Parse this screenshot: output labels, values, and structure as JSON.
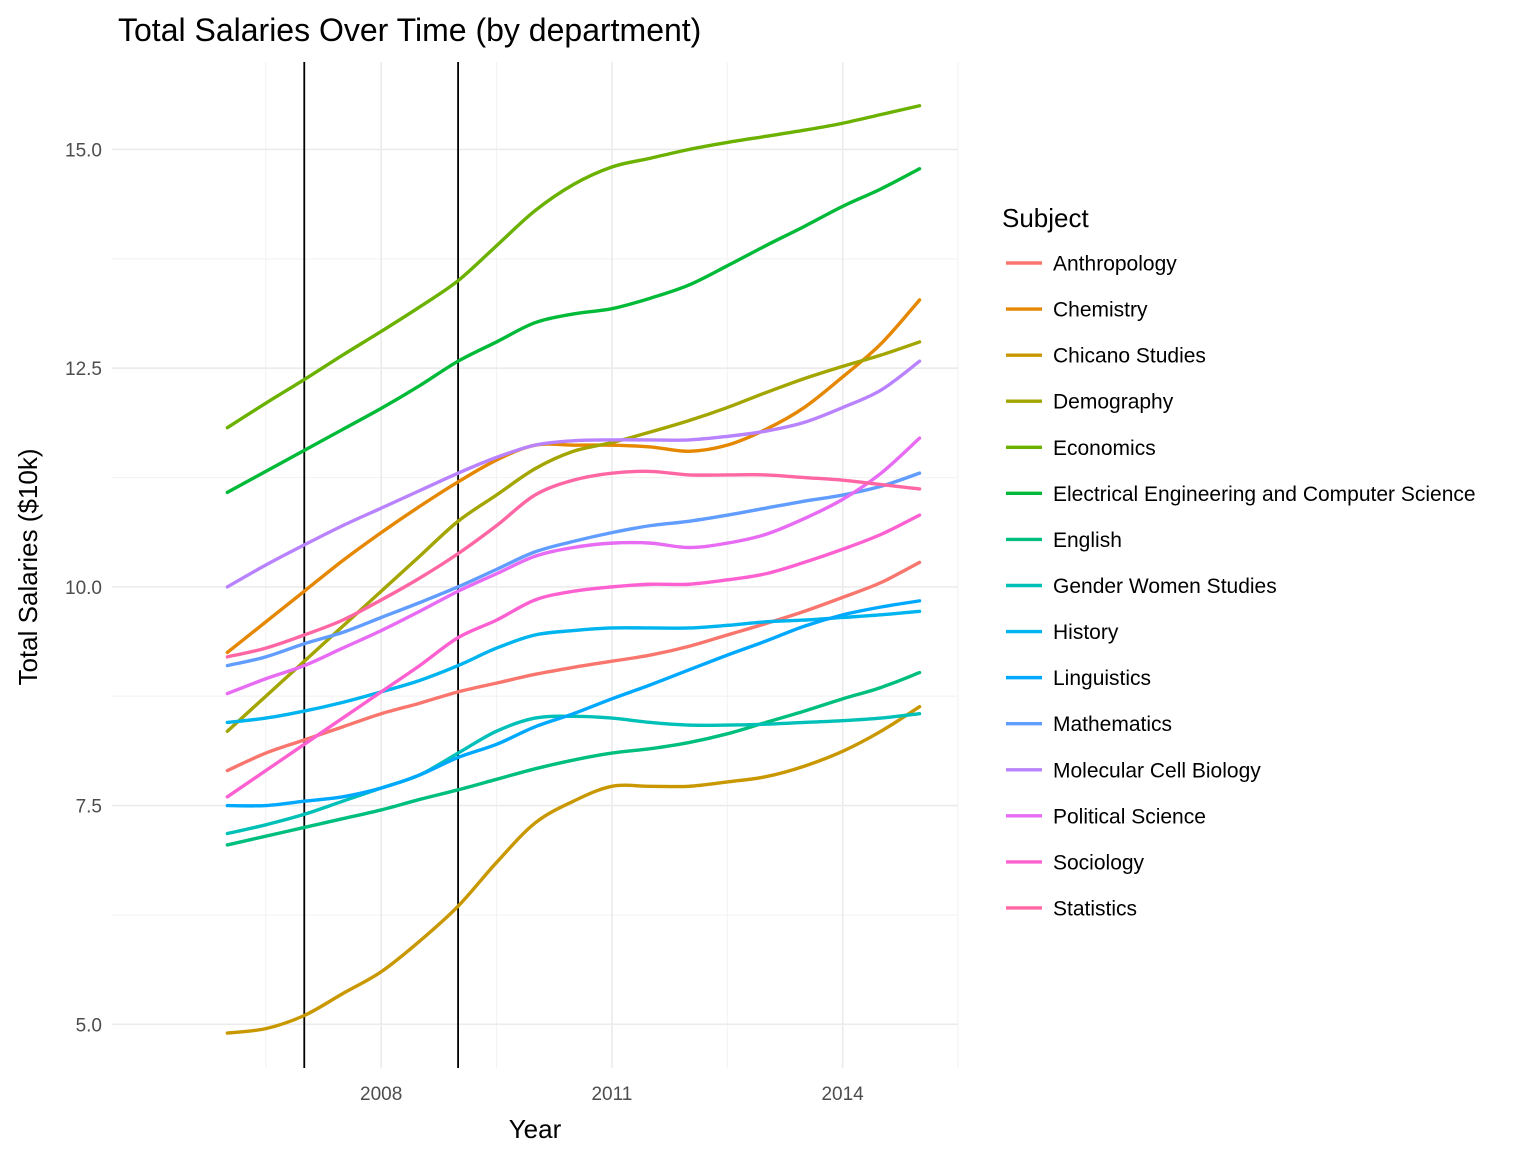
{
  "chart_data": {
    "type": "line",
    "title": "Total Salaries Over Time (by department)",
    "xlabel": "Year",
    "ylabel": "Total Salaries ($10k)",
    "xlim": [
      2004.5,
      2015.5
    ],
    "ylim": [
      4.5,
      16.0
    ],
    "x_ticks": [
      2008,
      2011,
      2014
    ],
    "x_tick_labels": [
      "2008",
      "2011",
      "2014"
    ],
    "y_ticks": [
      5.0,
      7.5,
      10.0,
      12.5,
      15.0
    ],
    "y_tick_labels": [
      "5.0",
      "7.5",
      "10.0",
      "12.5",
      "15.0"
    ],
    "grid": true,
    "legend_title": "Subject",
    "legend_position": "right",
    "vertical_lines": [
      2007,
      2009
    ],
    "x": [
      2006,
      2006.5,
      2007,
      2007.5,
      2008,
      2008.5,
      2009,
      2009.5,
      2010,
      2010.5,
      2011,
      2011.5,
      2012,
      2012.5,
      2013,
      2013.5,
      2014,
      2014.5,
      2015
    ],
    "series": [
      {
        "name": "Anthropology",
        "color": "#F8766D",
        "values": [
          7.9,
          8.1,
          8.25,
          8.4,
          8.55,
          8.67,
          8.8,
          8.9,
          9.0,
          9.08,
          9.15,
          9.22,
          9.32,
          9.45,
          9.58,
          9.72,
          9.88,
          10.05,
          10.28
        ]
      },
      {
        "name": "Chemistry",
        "color": "#E58700",
        "values": [
          9.25,
          9.6,
          9.95,
          10.3,
          10.62,
          10.92,
          11.2,
          11.45,
          11.62,
          11.62,
          11.62,
          11.6,
          11.55,
          11.62,
          11.8,
          12.05,
          12.4,
          12.78,
          13.28
        ]
      },
      {
        "name": "Chicano Studies",
        "color": "#C99800",
        "values": [
          4.9,
          4.95,
          5.1,
          5.35,
          5.6,
          5.95,
          6.35,
          6.85,
          7.3,
          7.55,
          7.72,
          7.72,
          7.72,
          7.77,
          7.83,
          7.95,
          8.12,
          8.35,
          8.63
        ]
      },
      {
        "name": "Demography",
        "color": "#A3A500",
        "values": [
          8.35,
          8.75,
          9.15,
          9.55,
          9.95,
          10.35,
          10.75,
          11.05,
          11.35,
          11.55,
          11.65,
          11.77,
          11.9,
          12.05,
          12.22,
          12.38,
          12.52,
          12.65,
          12.8
        ]
      },
      {
        "name": "Economics",
        "color": "#6BB100",
        "values": [
          11.82,
          12.1,
          12.37,
          12.65,
          12.92,
          13.2,
          13.5,
          13.9,
          14.3,
          14.6,
          14.8,
          14.9,
          15.0,
          15.08,
          15.15,
          15.22,
          15.3,
          15.4,
          15.5
        ]
      },
      {
        "name": "Electrical Engineering and Computer Science",
        "color": "#00BA38",
        "values": [
          11.08,
          11.32,
          11.56,
          11.8,
          12.04,
          12.3,
          12.58,
          12.8,
          13.02,
          13.12,
          13.18,
          13.3,
          13.45,
          13.67,
          13.9,
          14.12,
          14.35,
          14.55,
          14.78
        ]
      },
      {
        "name": "English",
        "color": "#00BF7D",
        "values": [
          7.05,
          7.15,
          7.25,
          7.35,
          7.45,
          7.57,
          7.68,
          7.8,
          7.92,
          8.02,
          8.1,
          8.15,
          8.22,
          8.32,
          8.45,
          8.58,
          8.72,
          8.85,
          9.02
        ]
      },
      {
        "name": "Gender Women Studies",
        "color": "#00C0B8",
        "values": [
          7.18,
          7.28,
          7.4,
          7.55,
          7.7,
          7.85,
          8.1,
          8.35,
          8.5,
          8.52,
          8.5,
          8.45,
          8.42,
          8.42,
          8.43,
          8.45,
          8.47,
          8.5,
          8.55
        ]
      },
      {
        "name": "History",
        "color": "#00B4EF",
        "values": [
          8.45,
          8.5,
          8.58,
          8.68,
          8.8,
          8.93,
          9.1,
          9.3,
          9.45,
          9.5,
          9.53,
          9.53,
          9.53,
          9.56,
          9.6,
          9.62,
          9.65,
          9.68,
          9.72
        ]
      },
      {
        "name": "Linguistics",
        "color": "#00A9FF",
        "values": [
          7.5,
          7.5,
          7.55,
          7.6,
          7.7,
          7.85,
          8.05,
          8.2,
          8.4,
          8.55,
          8.72,
          8.88,
          9.05,
          9.22,
          9.38,
          9.55,
          9.68,
          9.77,
          9.84
        ]
      },
      {
        "name": "Mathematics",
        "color": "#619CFF",
        "values": [
          9.1,
          9.2,
          9.35,
          9.48,
          9.65,
          9.82,
          10.0,
          10.2,
          10.4,
          10.52,
          10.62,
          10.7,
          10.75,
          10.82,
          10.9,
          10.98,
          11.05,
          11.15,
          11.3
        ]
      },
      {
        "name": "Molecular Cell Biology",
        "color": "#B983FF",
        "values": [
          10.0,
          10.25,
          10.48,
          10.7,
          10.9,
          11.1,
          11.3,
          11.48,
          11.62,
          11.67,
          11.68,
          11.68,
          11.68,
          11.72,
          11.78,
          11.88,
          12.05,
          12.25,
          12.58
        ]
      },
      {
        "name": "Political Science",
        "color": "#E76BF3",
        "values": [
          8.78,
          8.95,
          9.1,
          9.3,
          9.5,
          9.72,
          9.95,
          10.15,
          10.35,
          10.45,
          10.5,
          10.5,
          10.45,
          10.5,
          10.6,
          10.78,
          11.0,
          11.3,
          11.7
        ]
      },
      {
        "name": "Sociology",
        "color": "#FD61D1",
        "values": [
          7.6,
          7.9,
          8.2,
          8.5,
          8.8,
          9.1,
          9.42,
          9.62,
          9.85,
          9.95,
          10.0,
          10.03,
          10.03,
          10.08,
          10.15,
          10.28,
          10.43,
          10.6,
          10.82
        ]
      },
      {
        "name": "Statistics",
        "color": "#FF67A4",
        "values": [
          9.2,
          9.3,
          9.45,
          9.62,
          9.85,
          10.1,
          10.38,
          10.7,
          11.05,
          11.22,
          11.3,
          11.32,
          11.28,
          11.28,
          11.28,
          11.25,
          11.22,
          11.17,
          11.12
        ]
      }
    ]
  }
}
